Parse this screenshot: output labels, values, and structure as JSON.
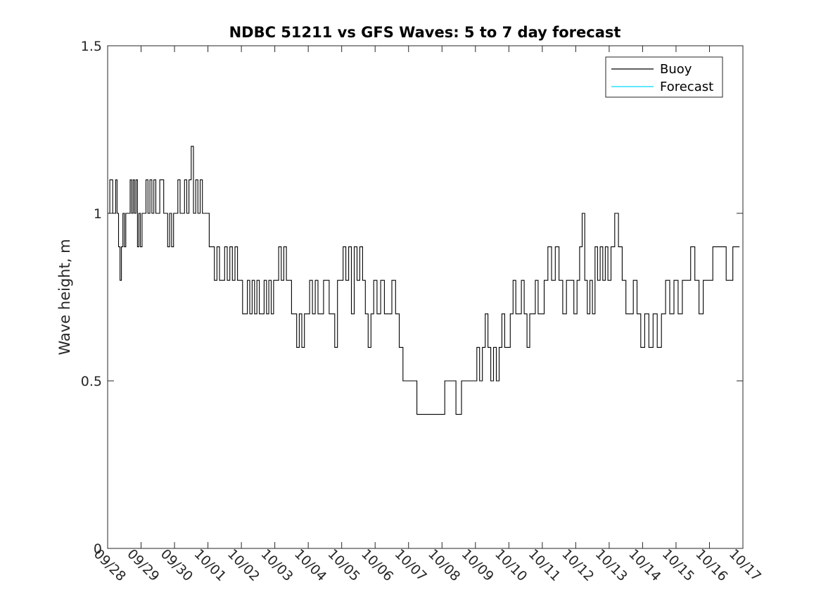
{
  "chart_data": {
    "type": "line",
    "title": "NDBC 51211 vs GFS Waves: 5 to 7 day forecast",
    "xlabel": "",
    "ylabel": "Wave height, m",
    "x_ticks": [
      "09/28",
      "09/29",
      "09/30",
      "10/01",
      "10/02",
      "10/03",
      "10/04",
      "10/05",
      "10/06",
      "10/07",
      "10/08",
      "10/09",
      "10/10",
      "10/11",
      "10/12",
      "10/13",
      "10/14",
      "10/15",
      "10/16",
      "10/17"
    ],
    "y_ticks": [
      "0",
      "0.5",
      "1",
      "1.5"
    ],
    "ylim": [
      0,
      1.5
    ],
    "x_range_days": [
      "09/28",
      "10/17"
    ],
    "grid": false,
    "legend_position": "top-right",
    "series": [
      {
        "name": "Buoy",
        "color": "#000000",
        "points": [
          [
            "09/28",
            1.0
          ],
          [
            "09/28",
            1.1
          ],
          [
            "09/28",
            1.1
          ],
          [
            "09/28",
            1.0
          ],
          [
            "09/28",
            1.0
          ],
          [
            "09/28",
            1.1
          ],
          [
            "09/28",
            1.0
          ],
          [
            "09/28",
            0.9
          ],
          [
            "09/28",
            0.8
          ],
          [
            "09/28",
            0.9
          ],
          [
            "09/28",
            1.0
          ],
          [
            "09/28",
            0.9
          ],
          [
            "09/28",
            1.0
          ],
          [
            "09/28",
            1.0
          ],
          [
            "09/28",
            1.0
          ],
          [
            "09/28",
            1.1
          ],
          [
            "09/28",
            1.0
          ],
          [
            "09/28",
            1.1
          ],
          [
            "09/28",
            1.0
          ],
          [
            "09/28",
            1.1
          ],
          [
            "09/28",
            0.9
          ],
          [
            "09/28",
            1.0
          ],
          [
            "09/28",
            0.9
          ],
          [
            "09/29",
            1.0
          ],
          [
            "09/29",
            1.0
          ],
          [
            "09/29",
            1.1
          ],
          [
            "09/29",
            1.0
          ],
          [
            "09/29",
            1.1
          ],
          [
            "09/29",
            1.0
          ],
          [
            "09/29",
            1.1
          ],
          [
            "09/29",
            1.0
          ],
          [
            "09/29",
            1.0
          ],
          [
            "09/29",
            1.1
          ],
          [
            "09/29",
            1.1
          ],
          [
            "09/29",
            1.0
          ],
          [
            "09/29",
            1.0
          ],
          [
            "09/29",
            0.9
          ],
          [
            "09/29",
            1.0
          ],
          [
            "09/29",
            0.9
          ],
          [
            "09/29",
            1.0
          ],
          [
            "09/30",
            1.0
          ],
          [
            "09/30",
            1.1
          ],
          [
            "09/30",
            1.0
          ],
          [
            "09/30",
            1.0
          ],
          [
            "09/30",
            1.1
          ],
          [
            "09/30",
            1.0
          ],
          [
            "09/30",
            1.1
          ],
          [
            "09/30",
            1.2
          ],
          [
            "09/30",
            1.0
          ],
          [
            "09/30",
            1.1
          ],
          [
            "09/30",
            1.0
          ],
          [
            "09/30",
            1.1
          ],
          [
            "09/30",
            1.0
          ],
          [
            "09/30",
            1.0
          ],
          [
            "09/30",
            1.0
          ],
          [
            "10/01",
            0.9
          ],
          [
            "10/01",
            0.9
          ],
          [
            "10/01",
            0.8
          ],
          [
            "10/01",
            0.9
          ],
          [
            "10/01",
            0.8
          ],
          [
            "10/01",
            0.8
          ],
          [
            "10/01",
            0.9
          ],
          [
            "10/01",
            0.8
          ],
          [
            "10/01",
            0.9
          ],
          [
            "10/01",
            0.8
          ],
          [
            "10/01",
            0.9
          ],
          [
            "10/01",
            0.8
          ],
          [
            "10/01",
            0.8
          ],
          [
            "10/02",
            0.7
          ],
          [
            "10/02",
            0.7
          ],
          [
            "10/02",
            0.8
          ],
          [
            "10/02",
            0.7
          ],
          [
            "10/02",
            0.8
          ],
          [
            "10/02",
            0.7
          ],
          [
            "10/02",
            0.8
          ],
          [
            "10/02",
            0.7
          ],
          [
            "10/02",
            0.7
          ],
          [
            "10/02",
            0.8
          ],
          [
            "10/02",
            0.7
          ],
          [
            "10/02",
            0.8
          ],
          [
            "10/02",
            0.7
          ],
          [
            "10/02",
            0.8
          ],
          [
            "10/03",
            0.8
          ],
          [
            "10/03",
            0.9
          ],
          [
            "10/03",
            0.8
          ],
          [
            "10/03",
            0.9
          ],
          [
            "10/03",
            0.8
          ],
          [
            "10/03",
            0.8
          ],
          [
            "10/03",
            0.7
          ],
          [
            "10/03",
            0.7
          ],
          [
            "10/03",
            0.6
          ],
          [
            "10/03",
            0.7
          ],
          [
            "10/03",
            0.6
          ],
          [
            "10/03",
            0.7
          ],
          [
            "10/03",
            0.7
          ],
          [
            "10/04",
            0.8
          ],
          [
            "10/04",
            0.7
          ],
          [
            "10/04",
            0.8
          ],
          [
            "10/04",
            0.7
          ],
          [
            "10/04",
            0.7
          ],
          [
            "10/04",
            0.8
          ],
          [
            "10/04",
            0.8
          ],
          [
            "10/04",
            0.7
          ],
          [
            "10/04",
            0.7
          ],
          [
            "10/04",
            0.6
          ],
          [
            "10/04",
            0.8
          ],
          [
            "10/04",
            0.8
          ],
          [
            "10/05",
            0.9
          ],
          [
            "10/05",
            0.8
          ],
          [
            "10/05",
            0.9
          ],
          [
            "10/05",
            0.7
          ],
          [
            "10/05",
            0.9
          ],
          [
            "10/05",
            0.8
          ],
          [
            "10/05",
            0.9
          ],
          [
            "10/05",
            0.8
          ],
          [
            "10/05",
            0.7
          ],
          [
            "10/05",
            0.6
          ],
          [
            "10/05",
            0.7
          ],
          [
            "10/05",
            0.8
          ],
          [
            "10/06",
            0.7
          ],
          [
            "10/06",
            0.8
          ],
          [
            "10/06",
            0.7
          ],
          [
            "10/06",
            0.7
          ],
          [
            "10/06",
            0.8
          ],
          [
            "10/06",
            0.7
          ],
          [
            "10/06",
            0.6
          ],
          [
            "10/06",
            0.5
          ],
          [
            "10/06",
            0.5
          ],
          [
            "10/07",
            0.4
          ],
          [
            "10/07",
            0.4
          ],
          [
            "10/08",
            0.5
          ],
          [
            "10/08",
            0.5
          ],
          [
            "10/08",
            0.4
          ],
          [
            "10/08",
            0.5
          ],
          [
            "10/08",
            0.5
          ],
          [
            "10/08",
            0.5
          ],
          [
            "10/09",
            0.6
          ],
          [
            "10/09",
            0.5
          ],
          [
            "10/09",
            0.6
          ],
          [
            "10/09",
            0.7
          ],
          [
            "10/09",
            0.6
          ],
          [
            "10/09",
            0.5
          ],
          [
            "10/09",
            0.6
          ],
          [
            "10/09",
            0.5
          ],
          [
            "10/09",
            0.6
          ],
          [
            "10/09",
            0.7
          ],
          [
            "10/09",
            0.6
          ],
          [
            "10/09",
            0.6
          ],
          [
            "10/10",
            0.7
          ],
          [
            "10/10",
            0.8
          ],
          [
            "10/10",
            0.7
          ],
          [
            "10/10",
            0.7
          ],
          [
            "10/10",
            0.8
          ],
          [
            "10/10",
            0.7
          ],
          [
            "10/10",
            0.6
          ],
          [
            "10/10",
            0.7
          ],
          [
            "10/10",
            0.7
          ],
          [
            "10/10",
            0.8
          ],
          [
            "10/10",
            0.7
          ],
          [
            "10/10",
            0.7
          ],
          [
            "10/11",
            0.8
          ],
          [
            "10/11",
            0.9
          ],
          [
            "10/11",
            0.8
          ],
          [
            "10/11",
            0.9
          ],
          [
            "10/11",
            0.8
          ],
          [
            "10/11",
            0.7
          ],
          [
            "10/11",
            0.8
          ],
          [
            "10/11",
            0.8
          ],
          [
            "10/11",
            0.7
          ],
          [
            "10/12",
            0.8
          ],
          [
            "10/12",
            0.9
          ],
          [
            "10/12",
            1.0
          ],
          [
            "10/12",
            0.8
          ],
          [
            "10/12",
            0.7
          ],
          [
            "10/12",
            0.8
          ],
          [
            "10/12",
            0.7
          ],
          [
            "10/12",
            0.9
          ],
          [
            "10/12",
            0.8
          ],
          [
            "10/12",
            0.9
          ],
          [
            "10/12",
            0.8
          ],
          [
            "10/12",
            0.9
          ],
          [
            "10/12",
            0.8
          ],
          [
            "10/13",
            0.9
          ],
          [
            "10/13",
            1.0
          ],
          [
            "10/13",
            0.9
          ],
          [
            "10/13",
            0.8
          ],
          [
            "10/13",
            0.7
          ],
          [
            "10/13",
            0.7
          ],
          [
            "10/13",
            0.8
          ],
          [
            "10/13",
            0.7
          ],
          [
            "10/13",
            0.6
          ],
          [
            "10/14",
            0.7
          ],
          [
            "10/14",
            0.6
          ],
          [
            "10/14",
            0.7
          ],
          [
            "10/14",
            0.6
          ],
          [
            "10/14",
            0.7
          ],
          [
            "10/14",
            0.8
          ],
          [
            "10/14",
            0.7
          ],
          [
            "10/14",
            0.8
          ],
          [
            "10/15",
            0.7
          ],
          [
            "10/15",
            0.8
          ],
          [
            "10/15",
            0.8
          ],
          [
            "10/15",
            0.9
          ],
          [
            "10/15",
            0.8
          ],
          [
            "10/15",
            0.7
          ],
          [
            "10/15",
            0.8
          ],
          [
            "10/15",
            0.8
          ],
          [
            "10/16",
            0.9
          ],
          [
            "10/16",
            0.9
          ],
          [
            "10/16",
            0.8
          ],
          [
            "10/16",
            0.9
          ],
          [
            "10/16",
            0.9
          ]
        ]
      },
      {
        "name": "Forecast",
        "color": "#00d8ff",
        "points": []
      }
    ]
  }
}
